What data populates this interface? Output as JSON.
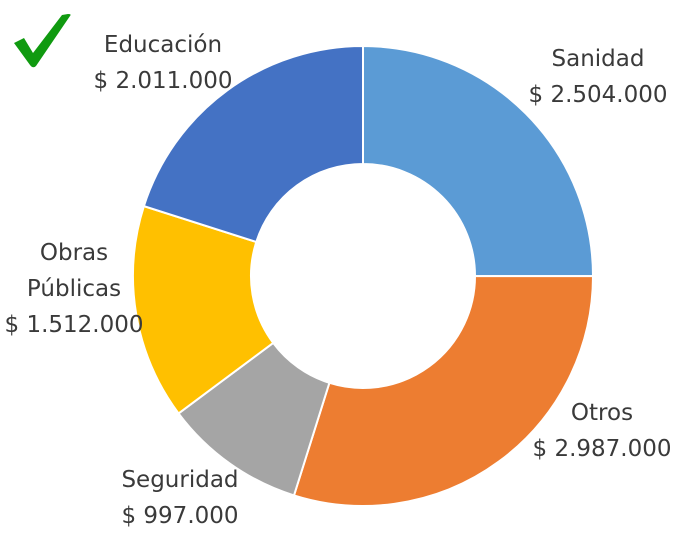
{
  "chart_data": {
    "type": "pie",
    "variant": "donut",
    "categories": [
      "Sanidad",
      "Otros",
      "Seguridad",
      "Obras Públicas",
      "Educación"
    ],
    "values": [
      2504000,
      2987000,
      997000,
      1512000,
      2011000
    ],
    "value_labels": [
      "$ 2.504.000",
      "$ 2.987.000",
      "$ 997.000",
      "$ 1.512.000",
      "$ 2.011.000"
    ],
    "colors": [
      "#5b9bd5",
      "#ed7d31",
      "#a5a5a5",
      "#ffc000",
      "#4472c4"
    ],
    "title": "",
    "legend": "none"
  },
  "badge": {
    "icon": "checkmark-icon",
    "color": "#109a10"
  }
}
